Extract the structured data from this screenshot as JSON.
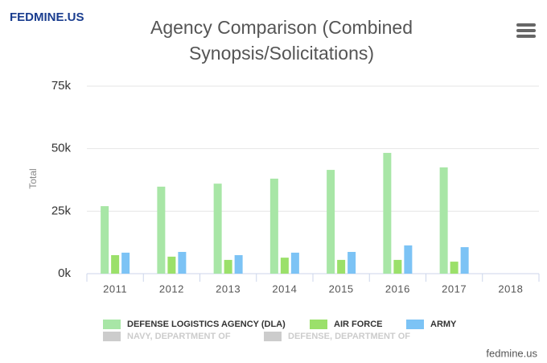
{
  "brand": "FEDMINE.US",
  "credit": "fedmine.us",
  "chart_data": {
    "type": "bar",
    "title": "Agency Comparison (Combined Synopsis/Solicitations)",
    "y_label": "Total",
    "categories": [
      "2011",
      "2012",
      "2013",
      "2014",
      "2015",
      "2016",
      "2017",
      "2018"
    ],
    "series": [
      {
        "name": "DEFENSE LOGISTICS AGENCY (DLA)",
        "color": "#a8e6a6",
        "visible": true,
        "values": [
          27000,
          34800,
          36000,
          38000,
          41500,
          48300,
          42500,
          null
        ]
      },
      {
        "name": "AIR FORCE",
        "color": "#9be06a",
        "visible": true,
        "values": [
          7400,
          6800,
          5500,
          6400,
          5500,
          5500,
          4800,
          null
        ]
      },
      {
        "name": "ARMY",
        "color": "#7cc3f5",
        "visible": true,
        "values": [
          8400,
          8700,
          7400,
          8400,
          8700,
          11300,
          10600,
          null
        ]
      },
      {
        "name": "NAVY, DEPARTMENT OF",
        "color": "#cccccc",
        "visible": false,
        "values": [
          null,
          null,
          null,
          null,
          null,
          null,
          null,
          null
        ]
      },
      {
        "name": "DEFENSE, DEPARTMENT OF",
        "color": "#cccccc",
        "visible": false,
        "values": [
          null,
          null,
          null,
          null,
          null,
          null,
          null,
          null
        ]
      }
    ],
    "ylim": [
      0,
      75000
    ],
    "yticks": [
      {
        "value": 0,
        "label": "0k"
      },
      {
        "value": 25000,
        "label": "25k"
      },
      {
        "value": 50000,
        "label": "50k"
      },
      {
        "value": 75000,
        "label": "75k"
      }
    ],
    "grid": true
  }
}
